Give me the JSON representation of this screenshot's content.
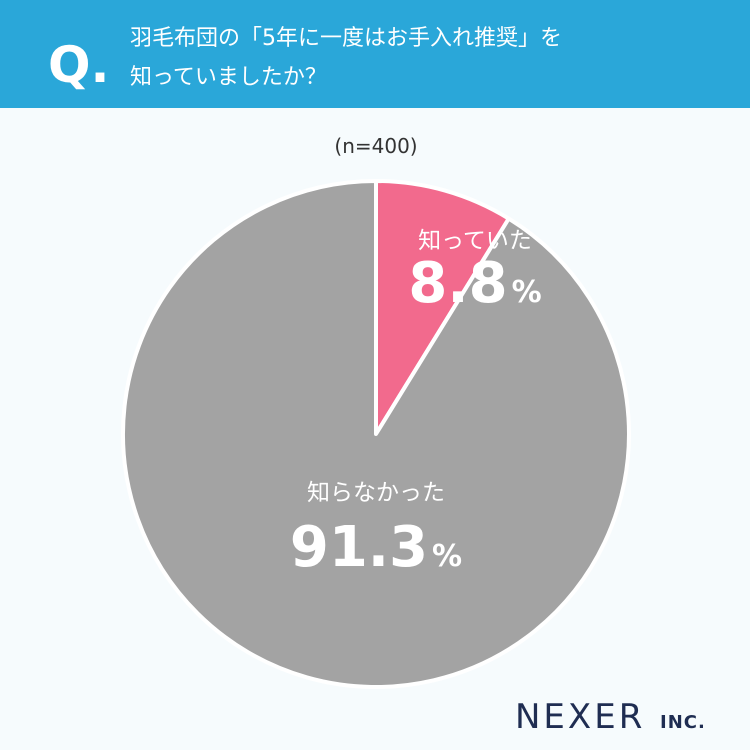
{
  "question_mark": "Q.",
  "chart_data": {
    "type": "pie",
    "title": [
      "羽毛布団の「5年に一度はお手入れ推奨」を",
      "知っていましたか？"
    ],
    "subtitle": "(n=400)",
    "categories": [
      "知っていた",
      "知らなかった"
    ],
    "values": [
      8.8,
      91.3
    ],
    "value_labels": [
      "8.8%",
      "91.3%"
    ],
    "colors": [
      "#f26a8d",
      "#a3a3a3"
    ]
  },
  "brand": {
    "name": "NEXER",
    "suffix": "INC."
  }
}
